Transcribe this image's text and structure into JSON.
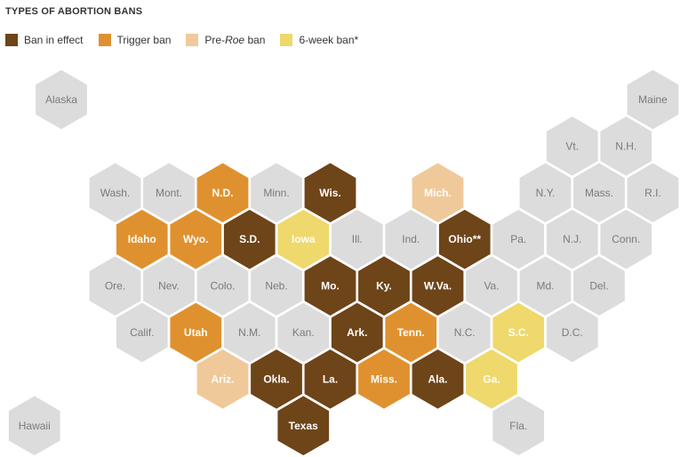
{
  "title": "TYPES OF ABORTION BANS",
  "legend": [
    {
      "key": "ban",
      "pre": "Ban in effect",
      "em": "",
      "post": "",
      "color": "#6e4419"
    },
    {
      "key": "trigger",
      "pre": "Trigger ban",
      "em": "",
      "post": "",
      "color": "#e0912f"
    },
    {
      "key": "preroe",
      "pre": "Pre-",
      "em": "Roe",
      "post": " ban",
      "color": "#efc99a"
    },
    {
      "key": "sixweek",
      "pre": "6-week ban*",
      "em": "",
      "post": "",
      "color": "#efd86c"
    }
  ],
  "none_color": "#dcdcdc",
  "states": [
    {
      "label": "Alaska",
      "row": 0,
      "col": 0,
      "cat": "none"
    },
    {
      "label": "Maine",
      "row": 0,
      "col": 11,
      "cat": "none"
    },
    {
      "label": "Vt.",
      "row": 1,
      "col": 9.5,
      "cat": "none"
    },
    {
      "label": "N.H.",
      "row": 1,
      "col": 10.5,
      "cat": "none"
    },
    {
      "label": "Wash.",
      "row": 2,
      "col": 1,
      "cat": "none"
    },
    {
      "label": "Mont.",
      "row": 2,
      "col": 2,
      "cat": "none"
    },
    {
      "label": "N.D.",
      "row": 2,
      "col": 3,
      "cat": "trigger"
    },
    {
      "label": "Minn.",
      "row": 2,
      "col": 4,
      "cat": "none"
    },
    {
      "label": "Wis.",
      "row": 2,
      "col": 5,
      "cat": "ban"
    },
    {
      "label": "Mich.",
      "row": 2,
      "col": 7,
      "cat": "preroe"
    },
    {
      "label": "N.Y.",
      "row": 2,
      "col": 9,
      "cat": "none"
    },
    {
      "label": "Mass.",
      "row": 2,
      "col": 10,
      "cat": "none"
    },
    {
      "label": "R.I.",
      "row": 2,
      "col": 11,
      "cat": "none"
    },
    {
      "label": "Idaho",
      "row": 3,
      "col": 1.5,
      "cat": "trigger"
    },
    {
      "label": "Wyo.",
      "row": 3,
      "col": 2.5,
      "cat": "trigger"
    },
    {
      "label": "S.D.",
      "row": 3,
      "col": 3.5,
      "cat": "ban"
    },
    {
      "label": "Iowa",
      "row": 3,
      "col": 4.5,
      "cat": "sixweek"
    },
    {
      "label": "Ill.",
      "row": 3,
      "col": 5.5,
      "cat": "none"
    },
    {
      "label": "Ind.",
      "row": 3,
      "col": 6.5,
      "cat": "none"
    },
    {
      "label": "Ohio**",
      "row": 3,
      "col": 7.5,
      "cat": "ban"
    },
    {
      "label": "Pa.",
      "row": 3,
      "col": 8.5,
      "cat": "none"
    },
    {
      "label": "N.J.",
      "row": 3,
      "col": 9.5,
      "cat": "none"
    },
    {
      "label": "Conn.",
      "row": 3,
      "col": 10.5,
      "cat": "none"
    },
    {
      "label": "Ore.",
      "row": 4,
      "col": 1,
      "cat": "none"
    },
    {
      "label": "Nev.",
      "row": 4,
      "col": 2,
      "cat": "none"
    },
    {
      "label": "Colo.",
      "row": 4,
      "col": 3,
      "cat": "none"
    },
    {
      "label": "Neb.",
      "row": 4,
      "col": 4,
      "cat": "none"
    },
    {
      "label": "Mo.",
      "row": 4,
      "col": 5,
      "cat": "ban"
    },
    {
      "label": "Ky.",
      "row": 4,
      "col": 6,
      "cat": "ban"
    },
    {
      "label": "W.Va.",
      "row": 4,
      "col": 7,
      "cat": "ban"
    },
    {
      "label": "Va.",
      "row": 4,
      "col": 8,
      "cat": "none"
    },
    {
      "label": "Md.",
      "row": 4,
      "col": 9,
      "cat": "none"
    },
    {
      "label": "Del.",
      "row": 4,
      "col": 10,
      "cat": "none"
    },
    {
      "label": "Calif.",
      "row": 5,
      "col": 1.5,
      "cat": "none"
    },
    {
      "label": "Utah",
      "row": 5,
      "col": 2.5,
      "cat": "trigger"
    },
    {
      "label": "N.M.",
      "row": 5,
      "col": 3.5,
      "cat": "none"
    },
    {
      "label": "Kan.",
      "row": 5,
      "col": 4.5,
      "cat": "none"
    },
    {
      "label": "Ark.",
      "row": 5,
      "col": 5.5,
      "cat": "ban"
    },
    {
      "label": "Tenn.",
      "row": 5,
      "col": 6.5,
      "cat": "trigger"
    },
    {
      "label": "N.C.",
      "row": 5,
      "col": 7.5,
      "cat": "none"
    },
    {
      "label": "S.C.",
      "row": 5,
      "col": 8.5,
      "cat": "sixweek"
    },
    {
      "label": "D.C.",
      "row": 5,
      "col": 9.5,
      "cat": "none"
    },
    {
      "label": "Ariz.",
      "row": 6,
      "col": 3,
      "cat": "preroe"
    },
    {
      "label": "Okla.",
      "row": 6,
      "col": 4,
      "cat": "ban"
    },
    {
      "label": "La.",
      "row": 6,
      "col": 5,
      "cat": "ban"
    },
    {
      "label": "Miss.",
      "row": 6,
      "col": 6,
      "cat": "trigger"
    },
    {
      "label": "Ala.",
      "row": 6,
      "col": 7,
      "cat": "ban"
    },
    {
      "label": "Ga.",
      "row": 6,
      "col": 8,
      "cat": "sixweek"
    },
    {
      "label": "Hawaii",
      "row": 7,
      "col": -0.5,
      "cat": "none"
    },
    {
      "label": "Texas",
      "row": 7,
      "col": 4.5,
      "cat": "ban"
    },
    {
      "label": "Fla.",
      "row": 7,
      "col": 8.5,
      "cat": "none"
    }
  ]
}
